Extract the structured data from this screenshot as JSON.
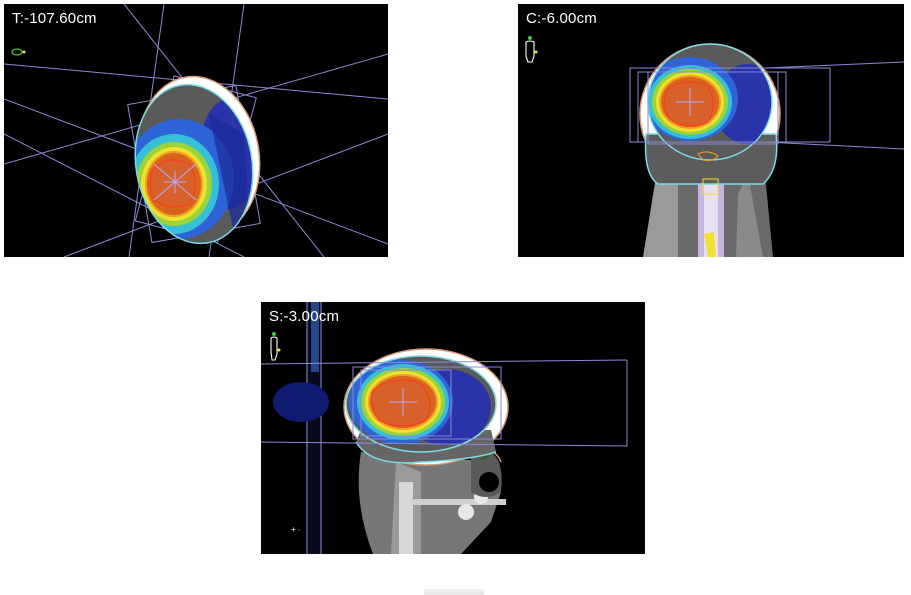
{
  "panels": {
    "transverse": {
      "label": "T:-107.60cm"
    },
    "coronal": {
      "label": "C:-6.00cm"
    },
    "sagittal": {
      "label": "S:-3.00cm"
    }
  },
  "figure": {
    "header_fragment": ""
  },
  "icons": [
    "orientation-head-icon",
    "orientation-body-icon",
    "isocenter-crosshair-icon"
  ],
  "colors": {
    "background": "#000000",
    "dose_red": "#e2541c",
    "dose_orange": "#f0a020",
    "dose_yellow": "#f0e030",
    "dose_green": "#9ad43a",
    "dose_cyan": "#36c8d8",
    "dose_blue": "#2a5ad8",
    "dose_navy": "#1a2a9a",
    "beam_lines": "#8a8ad8"
  }
}
